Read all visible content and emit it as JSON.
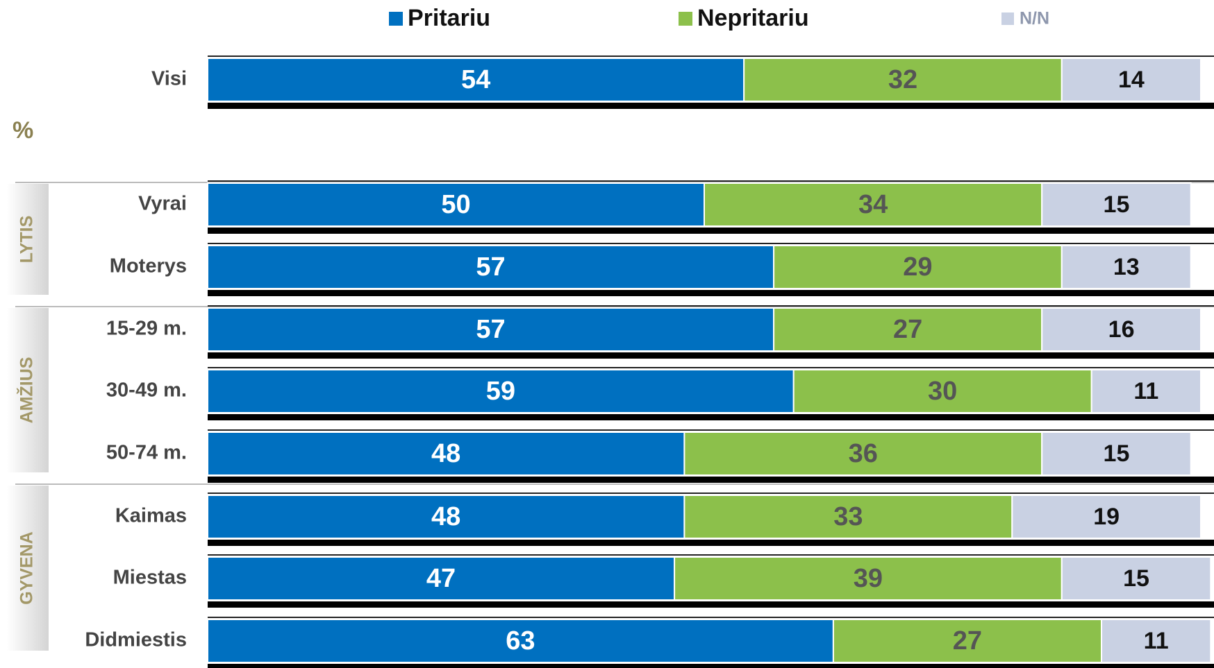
{
  "chart_data": {
    "type": "stacked_bar_horizontal",
    "unit_label": "%",
    "categories": [
      "Visi",
      "Vyrai",
      "Moterys",
      "15-29 m.",
      "30-49 m.",
      "50-74 m.",
      "Kaimas",
      "Miestas",
      "Didmiestis"
    ],
    "groups": [
      "LYTIS",
      "AMŽIUS",
      "GYVENA"
    ],
    "series": [
      {
        "name": "Pritariu",
        "color": "#0070c0",
        "label_color": "#ffffff",
        "values": [
          54,
          50,
          57,
          57,
          59,
          48,
          48,
          47,
          63
        ]
      },
      {
        "name": "Nepritariu",
        "color": "#8cc04b",
        "label_color": "#555555",
        "values": [
          32,
          34,
          29,
          27,
          30,
          36,
          33,
          39,
          27
        ]
      },
      {
        "name": "N/N",
        "color": "#c9d1e3",
        "label_color": "#111111",
        "values": [
          14,
          15,
          13,
          16,
          11,
          15,
          19,
          15,
          11
        ]
      }
    ]
  }
}
